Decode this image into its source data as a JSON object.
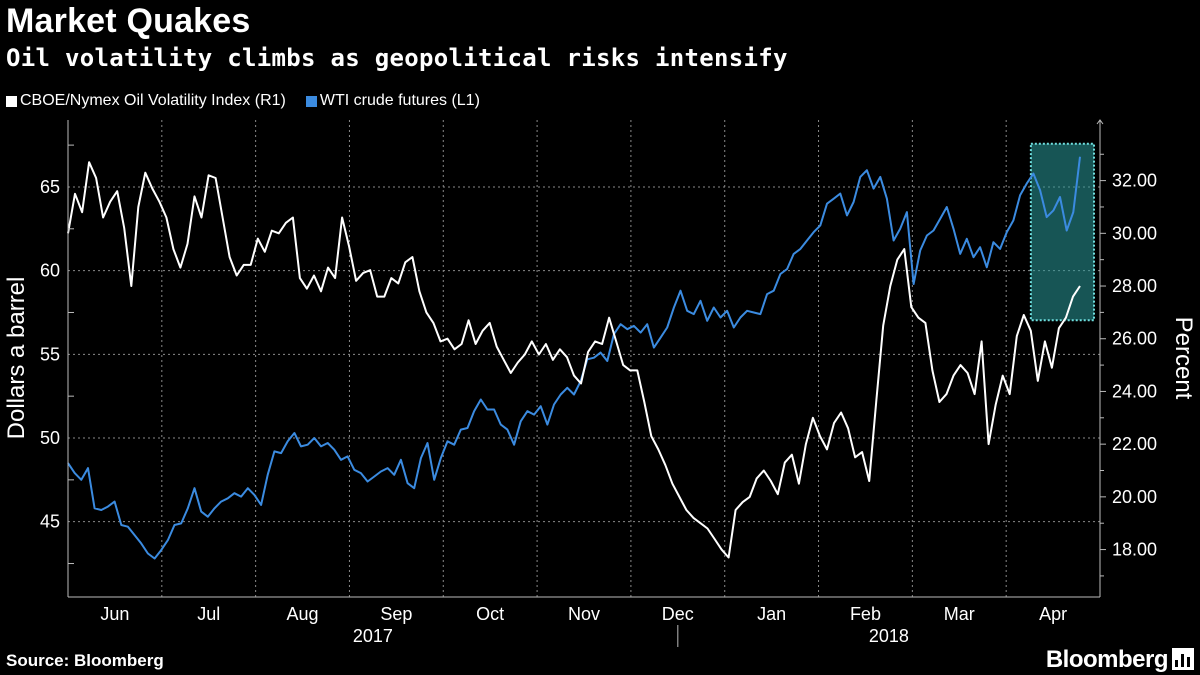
{
  "chart_data": {
    "type": "line",
    "title": "Market Quakes",
    "subtitle": "Oil volatility climbs as geopolitical risks intensify",
    "source": "Source: Bloomberg",
    "brand": "Bloomberg",
    "ylabel_left": "Dollars a barrel",
    "ylabel_right": "Percent",
    "ylim_left": [
      40.5,
      69
    ],
    "ylim_right": [
      16.2,
      34.3
    ],
    "yticks_left": [
      "45",
      "50",
      "55",
      "60",
      "65"
    ],
    "yticks_right": [
      "18.00",
      "20.00",
      "22.00",
      "24.00",
      "26.00",
      "28.00",
      "30.00",
      "32.00"
    ],
    "months": [
      "Jun",
      "Jul",
      "Aug",
      "Sep",
      "Oct",
      "Nov",
      "Dec",
      "Jan",
      "Feb",
      "Mar",
      "Apr"
    ],
    "years": [
      "2017",
      "2018"
    ],
    "colors": {
      "ovx": "#ffffff",
      "wti": "#3b8be0",
      "highlight": "#2a9a9a",
      "grid": "#8a8a8a"
    },
    "highlight": {
      "x_from": 0.933,
      "x_to": 1.0,
      "y_right_from": 26.7,
      "y_right_to": 33.4
    },
    "series": [
      {
        "name": "CBOE/Nymex Oil Volatility Index (R1)",
        "axis": "right",
        "values": [
          30.0,
          31.5,
          30.8,
          32.7,
          32.1,
          30.6,
          31.2,
          31.6,
          30.2,
          28.0,
          31.0,
          32.3,
          31.7,
          31.2,
          30.6,
          29.4,
          28.7,
          29.6,
          31.4,
          30.6,
          32.2,
          32.1,
          30.6,
          29.1,
          28.4,
          28.8,
          28.8,
          29.8,
          29.3,
          30.1,
          30.0,
          30.4,
          30.6,
          28.3,
          27.9,
          28.4,
          27.8,
          28.7,
          28.3,
          30.6,
          29.5,
          28.2,
          28.5,
          28.6,
          27.6,
          27.6,
          28.3,
          28.1,
          28.9,
          29.1,
          27.8,
          27.0,
          26.6,
          25.9,
          26.0,
          25.6,
          25.8,
          26.7,
          25.8,
          26.3,
          26.6,
          25.7,
          25.2,
          24.7,
          25.1,
          25.4,
          25.9,
          25.4,
          25.8,
          25.2,
          25.6,
          25.3,
          24.6,
          24.3,
          25.5,
          25.9,
          25.8,
          26.8,
          25.9,
          25.0,
          24.8,
          24.8,
          23.6,
          22.3,
          21.8,
          21.2,
          20.5,
          20.0,
          19.5,
          19.2,
          19.0,
          18.8,
          18.4,
          18.0,
          17.7,
          19.5,
          19.8,
          20.0,
          20.7,
          21.0,
          20.6,
          20.1,
          21.3,
          21.6,
          20.5,
          22.0,
          23.0,
          22.3,
          21.8,
          22.8,
          23.2,
          22.6,
          21.5,
          21.7,
          20.6,
          23.6,
          26.5,
          28.0,
          29.0,
          29.4,
          27.2,
          26.8,
          26.6,
          24.8,
          23.6,
          23.9,
          24.6,
          25.0,
          24.7,
          23.9,
          25.9,
          22.0,
          23.5,
          24.6,
          23.9,
          26.1,
          26.9,
          26.3,
          24.4,
          25.9,
          24.9,
          26.4,
          26.8,
          27.6,
          28.0
        ]
      },
      {
        "name": "WTI crude futures (L1)",
        "axis": "left",
        "values": [
          48.5,
          47.9,
          47.5,
          48.2,
          45.8,
          45.7,
          45.9,
          46.2,
          44.8,
          44.7,
          44.2,
          43.7,
          43.1,
          42.8,
          43.3,
          43.9,
          44.8,
          44.9,
          45.8,
          47.0,
          45.6,
          45.3,
          45.8,
          46.2,
          46.4,
          46.7,
          46.5,
          47.0,
          46.6,
          46.0,
          47.8,
          49.2,
          49.1,
          49.8,
          50.3,
          49.5,
          49.6,
          50.0,
          49.5,
          49.7,
          49.3,
          48.7,
          48.9,
          48.1,
          47.9,
          47.4,
          47.7,
          48.0,
          48.2,
          47.8,
          48.7,
          47.3,
          47.0,
          48.8,
          49.7,
          47.5,
          48.8,
          49.8,
          49.6,
          50.5,
          50.6,
          51.6,
          52.3,
          51.7,
          51.7,
          50.8,
          50.5,
          49.6,
          51.0,
          51.6,
          51.4,
          51.9,
          50.8,
          52.0,
          52.6,
          53.0,
          52.6,
          53.4,
          54.7,
          54.8,
          55.1,
          54.6,
          56.2,
          56.8,
          56.5,
          56.7,
          56.3,
          56.8,
          55.4,
          56.0,
          56.6,
          57.8,
          58.8,
          57.6,
          57.4,
          58.2,
          57.0,
          57.8,
          57.2,
          57.6,
          56.6,
          57.2,
          57.6,
          57.5,
          57.4,
          58.6,
          58.8,
          59.8,
          60.1,
          61.0,
          61.3,
          61.8,
          62.3,
          62.7,
          64.0,
          64.3,
          64.6,
          63.3,
          64.1,
          65.6,
          66.0,
          64.9,
          65.6,
          64.3,
          61.8,
          62.5,
          63.5,
          59.2,
          61.2,
          62.1,
          62.4,
          63.1,
          63.8,
          62.5,
          61.0,
          61.9,
          60.8,
          61.4,
          60.2,
          61.7,
          61.3,
          62.3,
          63.0,
          64.5,
          65.2,
          65.8,
          64.8,
          63.2,
          63.6,
          64.4,
          62.4,
          63.5,
          66.8
        ]
      }
    ]
  }
}
